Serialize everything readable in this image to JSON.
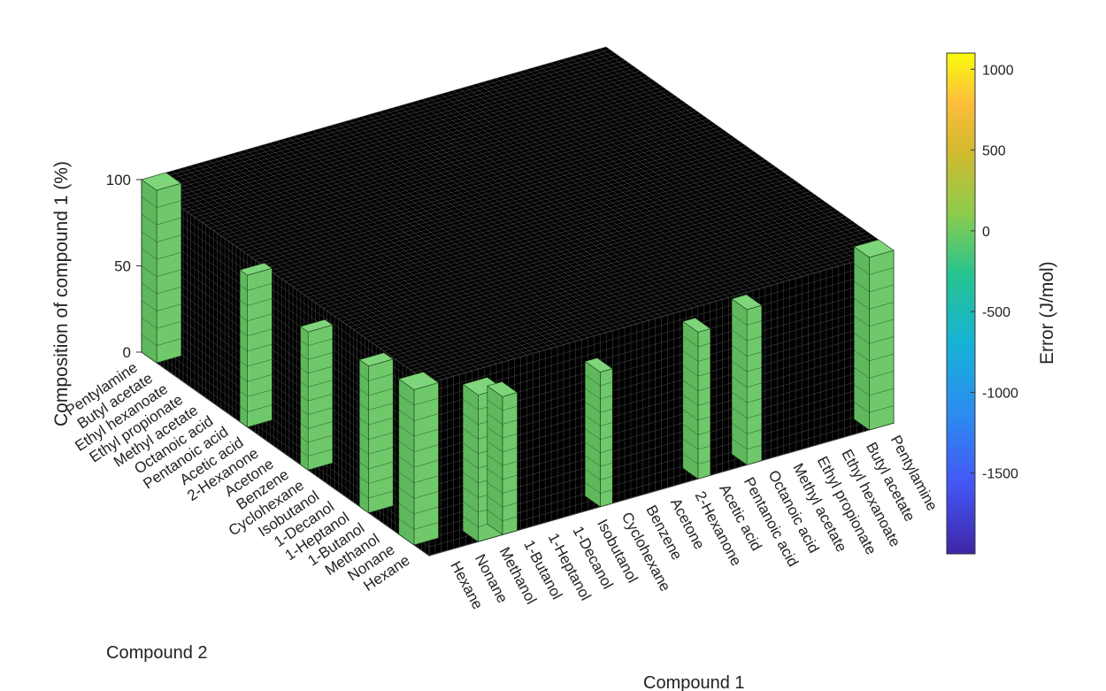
{
  "chart_data": {
    "type": "bar3d",
    "compounds": [
      "Hexane",
      "Nonane",
      "Methanol",
      "1-Butanol",
      "1-Heptanol",
      "1-Decanol",
      "Isobutanol",
      "Cyclohexane",
      "Benzene",
      "Acetone",
      "2-Hexanone",
      "Acetic acid",
      "Pentanoic acid",
      "Octanoic acid",
      "Methyl acetate",
      "Ethyl propionate",
      "Ethyl hexanoate",
      "Butyl acetate",
      "Pentylamine"
    ],
    "xlabel": "Compound 1",
    "ylabel": "Compound 2",
    "zlabel": "Composition of compound 1 (%)",
    "zlim": [
      0,
      100
    ],
    "zticks": [
      "0",
      "50",
      "100"
    ],
    "colorbar": {
      "label": "Error (J/mol)",
      "range": [
        -2000,
        1100
      ],
      "ticks": [
        1000,
        500,
        0,
        -500,
        -1000,
        -1500
      ],
      "tick_labels": [
        "1000",
        "500",
        "0",
        "-500",
        "-1000",
        "-1500"
      ],
      "colormap": "parula"
    },
    "cell_fill_color": "#6fc96b",
    "background_cell_color": "#000000",
    "grid": true
  }
}
